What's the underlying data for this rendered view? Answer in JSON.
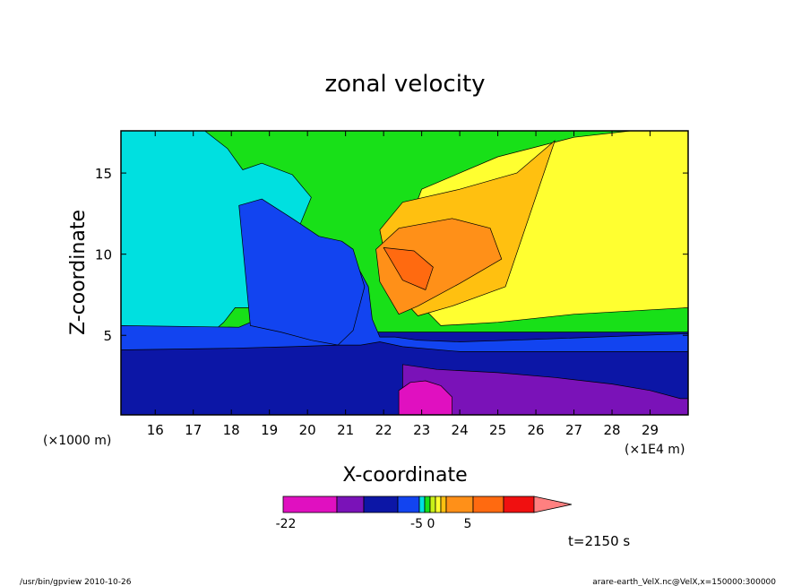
{
  "chart_data": {
    "type": "heatmap",
    "title": "zonal velocity",
    "xlabel": "X-coordinate",
    "ylabel": "Z-coordinate",
    "x_scale_note": "(×1E4 m)",
    "y_scale_note": "(×1000 m)",
    "x_ticks": [
      "16",
      "17",
      "18",
      "19",
      "20",
      "21",
      "22",
      "23",
      "24",
      "25",
      "26",
      "27",
      "28",
      "29"
    ],
    "y_ticks": [
      "5",
      "10",
      "15"
    ],
    "xlim": [
      15.1,
      30.0
    ],
    "ylim": [
      0.1,
      17.6
    ],
    "time_label": "t=2150 s",
    "colorbar": {
      "colors": [
        "#e010c0",
        "#7a12b8",
        "#0c16a6",
        "#1244f0",
        "#00e0e0",
        "#18e018",
        "#c8f018",
        "#ffff30",
        "#ffc010",
        "#ff9018",
        "#ff6a10",
        "#f01010",
        "#ff8080"
      ],
      "tick_labels": [
        "-22",
        "-5",
        "0",
        "5"
      ]
    },
    "regions": [
      {
        "level": "#18e018",
        "x": [
          15.1,
          30,
          30,
          15.1
        ],
        "y": [
          5.2,
          5.2,
          17.6,
          17.6
        ]
      },
      {
        "level": "#ffff30",
        "x": [
          22.2,
          23,
          25,
          27,
          28.5,
          30,
          30,
          27,
          25,
          23.5,
          22.5
        ],
        "y": [
          9,
          14,
          16,
          17.2,
          17.6,
          17.6,
          6.7,
          6.3,
          5.8,
          5.6,
          8
        ]
      },
      {
        "level": "#ffc010",
        "x": [
          21.9,
          22.5,
          24,
          25.5,
          26.5,
          25.2,
          23.8,
          22.9,
          22.2
        ],
        "y": [
          11.5,
          13.2,
          14,
          15,
          17,
          8,
          6.8,
          6.2,
          8
        ]
      },
      {
        "level": "#ff9018",
        "x": [
          21.8,
          22.4,
          23.8,
          24.8,
          25.1,
          24,
          22.9,
          22.4,
          21.9
        ],
        "y": [
          10.3,
          11.6,
          12.2,
          11.6,
          9.7,
          8.2,
          6.8,
          6.3,
          8.3
        ]
      },
      {
        "level": "#ff6a10",
        "x": [
          22,
          22.8,
          23.3,
          23.1,
          22.5
        ],
        "y": [
          10.4,
          10.2,
          9.2,
          7.8,
          8.4
        ]
      },
      {
        "level": "#00e0e0",
        "x": [
          15.1,
          17.3,
          17.9,
          18.3,
          18.8,
          19.6,
          20.1,
          19.8,
          19.4,
          18.8,
          18.1,
          17.8,
          17.6,
          16.9,
          15.1
        ],
        "y": [
          17.6,
          17.6,
          16.5,
          15.2,
          15.6,
          14.9,
          13.5,
          11.8,
          9.2,
          6.7,
          6.7,
          5.8,
          5.4,
          5.2,
          5.2
        ]
      },
      {
        "level": "#1244f0",
        "x": [
          15.1,
          18.2,
          18.8,
          19.5,
          20.3,
          20.8,
          21.3,
          21.6,
          21.7,
          21.9,
          22.3,
          22.9,
          24,
          25.4,
          30,
          30,
          15.1
        ],
        "y": [
          5.6,
          5.5,
          6.1,
          7.8,
          9.8,
          10.6,
          9.3,
          8,
          6,
          4.9,
          4.9,
          4.7,
          4.6,
          4.7,
          5.1,
          0.1,
          0.1
        ]
      },
      {
        "level": "#1244f0",
        "x": [
          18.2,
          18.8,
          19.6,
          20.3,
          20.9,
          21.2,
          21.5,
          21.2,
          20.8,
          20.1,
          19.3,
          18.5
        ],
        "y": [
          13,
          13.4,
          12.2,
          11.1,
          10.8,
          10.3,
          8,
          5.3,
          4.4,
          4.7,
          5.2,
          5.6
        ]
      },
      {
        "level": "#0c16a6",
        "x": [
          15.1,
          18,
          19.6,
          20.8,
          21.4,
          21.9,
          22.5,
          24,
          25.6,
          30,
          30,
          15.1
        ],
        "y": [
          4.1,
          4.2,
          4.3,
          4.4,
          4.4,
          4.6,
          4.3,
          4,
          4,
          4,
          0.1,
          0.1
        ]
      },
      {
        "level": "#7a12b8",
        "x": [
          22.5,
          23.4,
          25,
          26.5,
          28,
          29,
          29.8,
          30,
          30,
          22.5
        ],
        "y": [
          3.2,
          2.9,
          2.7,
          2.4,
          2,
          1.6,
          1.1,
          1.1,
          0.1,
          0.1
        ]
      },
      {
        "level": "#e010c0",
        "x": [
          22.4,
          22.7,
          23.1,
          23.5,
          23.8,
          23.8,
          22.4
        ],
        "y": [
          1.6,
          2.1,
          2.2,
          1.9,
          1.2,
          0.1,
          0.1
        ]
      }
    ]
  },
  "footer": {
    "left": "/usr/bin/gpview   2010-10-26",
    "right": "arare-earth_VelX.nc@VelX,x=150000:300000"
  }
}
